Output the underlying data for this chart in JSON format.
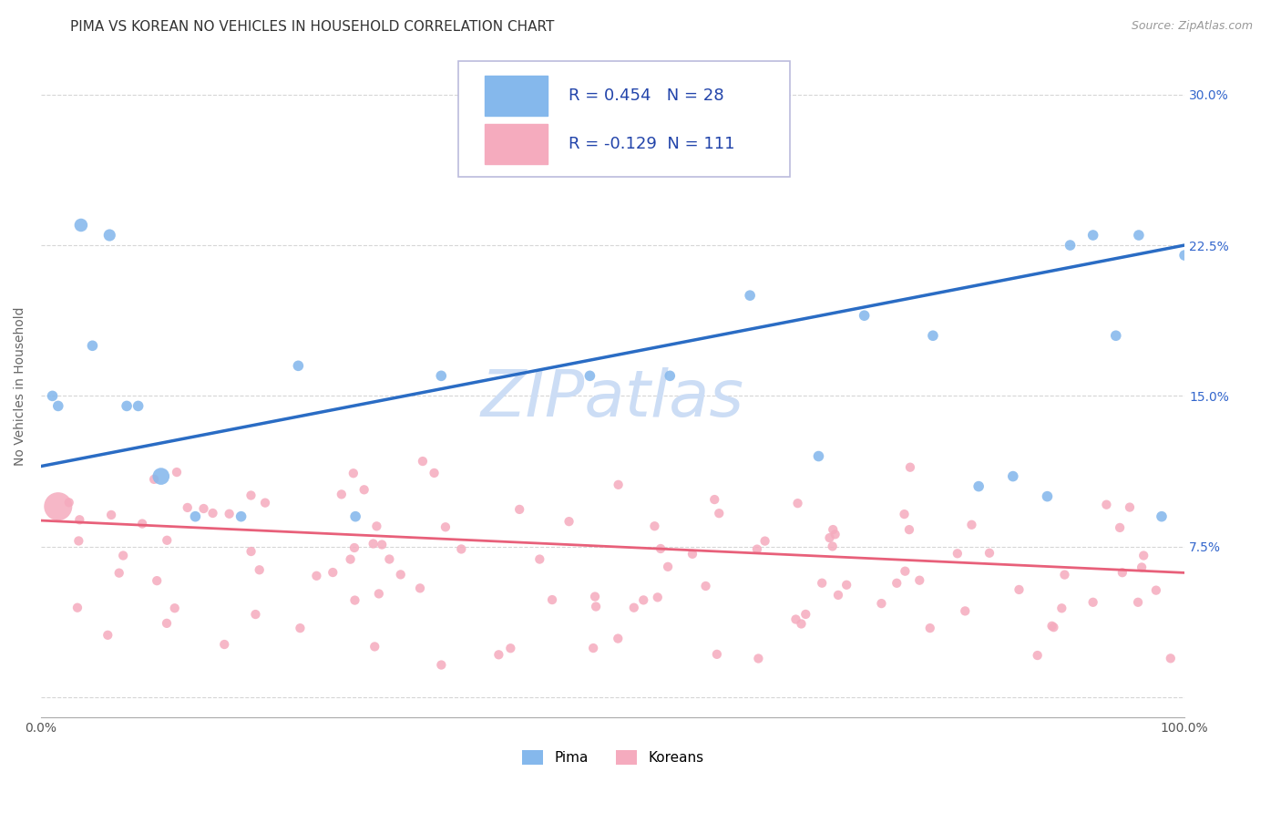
{
  "title": "PIMA VS KOREAN NO VEHICLES IN HOUSEHOLD CORRELATION CHART",
  "source": "Source: ZipAtlas.com",
  "ylabel": "No Vehicles in Household",
  "watermark": "ZIPatlas",
  "xlim": [
    0,
    100
  ],
  "ylim": [
    -1,
    32
  ],
  "yticks": [
    0,
    7.5,
    15.0,
    22.5,
    30.0
  ],
  "xticks": [
    0,
    25,
    50,
    75,
    100
  ],
  "xtick_labels": [
    "0.0%",
    "",
    "",
    "",
    "100.0%"
  ],
  "ytick_labels": [
    "",
    "7.5%",
    "15.0%",
    "22.5%",
    "30.0%"
  ],
  "background_color": "#ffffff",
  "grid_color": "#cccccc",
  "pima_color": "#85b8ec",
  "korean_color": "#f5abbe",
  "pima_line_color": "#2a6cc4",
  "korean_line_color": "#e8607a",
  "pima_R": 0.454,
  "pima_N": 28,
  "korean_R": -0.129,
  "korean_N": 111,
  "pima_x": [
    1.5,
    3.5,
    6.0,
    8.5,
    10.5,
    13.5,
    17.5,
    22.5,
    27.5,
    35.0,
    48.0,
    55.0,
    62.0,
    68.0,
    72.0,
    78.0,
    82.0,
    85.0,
    88.0,
    90.0,
    92.0,
    94.0,
    96.0,
    98.0,
    100.0,
    1.0,
    4.5,
    7.5
  ],
  "pima_y": [
    14.5,
    23.5,
    23.0,
    14.5,
    11.0,
    9.0,
    9.0,
    16.5,
    9.0,
    16.0,
    16.0,
    16.0,
    20.0,
    12.0,
    19.0,
    18.0,
    10.5,
    11.0,
    10.0,
    22.5,
    23.0,
    18.0,
    23.0,
    9.0,
    22.0,
    15.0,
    17.5,
    14.5
  ],
  "pima_sizes": [
    70,
    110,
    90,
    70,
    180,
    70,
    70,
    70,
    70,
    70,
    70,
    70,
    70,
    70,
    70,
    70,
    70,
    70,
    70,
    70,
    70,
    70,
    70,
    70,
    70,
    70,
    70,
    70
  ],
  "pima_line_x": [
    0,
    100
  ],
  "pima_line_y": [
    11.5,
    22.5
  ],
  "korean_line_x": [
    0,
    100
  ],
  "korean_line_y": [
    8.8,
    6.2
  ],
  "korean_big_x": [
    1.5
  ],
  "korean_big_y": [
    9.5
  ],
  "korean_big_size": [
    500
  ],
  "title_fontsize": 11,
  "label_fontsize": 10,
  "tick_fontsize": 10,
  "legend_fontsize": 13,
  "watermark_fontsize": 52,
  "watermark_color": "#ccddf5",
  "source_fontsize": 9
}
